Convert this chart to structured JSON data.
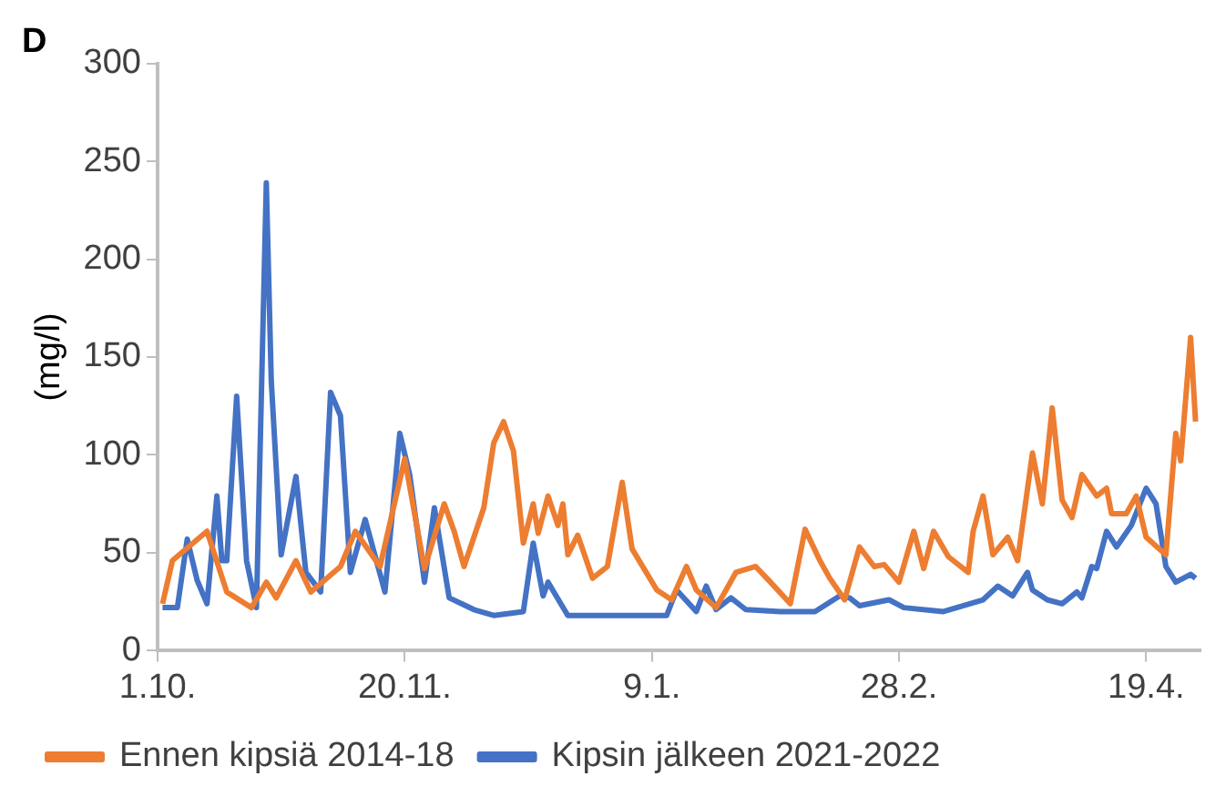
{
  "chart_data": {
    "type": "line",
    "title": "D",
    "ylabel": "(mg/l)",
    "xlim": [
      "2021-10-01",
      "2022-04-30"
    ],
    "xticks": [
      {
        "value": "2021-10-01",
        "label": "1.10."
      },
      {
        "value": "2021-11-20",
        "label": "20.11."
      },
      {
        "value": "2022-01-09",
        "label": "9.1."
      },
      {
        "value": "2022-02-28",
        "label": "28.2."
      },
      {
        "value": "2022-04-19",
        "label": "19.4."
      }
    ],
    "ylim": [
      0,
      300
    ],
    "yticks": [
      0,
      50,
      100,
      150,
      200,
      250,
      300
    ],
    "grid": false,
    "legend": "bottom",
    "marker": "none",
    "line_style": "solid",
    "series": [
      {
        "name": "Ennen kipsiä 2014-18",
        "color": "#ed7d31",
        "x": [
          "2021-10-02",
          "2021-10-04",
          "2021-10-11",
          "2021-10-15",
          "2021-10-20",
          "2021-10-23",
          "2021-10-25",
          "2021-10-29",
          "2021-11-01",
          "2021-11-07",
          "2021-11-10",
          "2021-11-15",
          "2021-11-20",
          "2021-11-24",
          "2021-11-28",
          "2021-11-30",
          "2021-12-02",
          "2021-12-06",
          "2021-12-08",
          "2021-12-10",
          "2021-12-12",
          "2021-12-14",
          "2021-12-16",
          "2021-12-17",
          "2021-12-19",
          "2021-12-21",
          "2021-12-22",
          "2021-12-23",
          "2021-12-25",
          "2021-12-28",
          "2021-12-31",
          "2022-01-03",
          "2022-01-05",
          "2022-01-10",
          "2022-01-13",
          "2022-01-16",
          "2022-01-18",
          "2022-01-22",
          "2022-01-26",
          "2022-01-30",
          "2022-02-02",
          "2022-02-06",
          "2022-02-09",
          "2022-02-12",
          "2022-02-14",
          "2022-02-17",
          "2022-02-20",
          "2022-02-23",
          "2022-02-25",
          "2022-02-28",
          "2022-03-03",
          "2022-03-05",
          "2022-03-07",
          "2022-03-10",
          "2022-03-14",
          "2022-03-15",
          "2022-03-17",
          "2022-03-19",
          "2022-03-22",
          "2022-03-24",
          "2022-03-27",
          "2022-03-29",
          "2022-03-31",
          "2022-04-02",
          "2022-04-04",
          "2022-04-06",
          "2022-04-09",
          "2022-04-11",
          "2022-04-12",
          "2022-04-15",
          "2022-04-17",
          "2022-04-19",
          "2022-04-23",
          "2022-04-25",
          "2022-04-26",
          "2022-04-28",
          "2022-04-29"
        ],
        "values": [
          24,
          46,
          61,
          30,
          22,
          35,
          27,
          46,
          30,
          43,
          61,
          43,
          98,
          42,
          75,
          61,
          43,
          73,
          106,
          117,
          102,
          55,
          75,
          60,
          79,
          64,
          75,
          49,
          59,
          37,
          43,
          86,
          52,
          31,
          26,
          43,
          31,
          22,
          40,
          43,
          35,
          24,
          62,
          46,
          37,
          26,
          53,
          43,
          44,
          35,
          61,
          42,
          61,
          48,
          40,
          61,
          79,
          49,
          58,
          46,
          101,
          75,
          124,
          77,
          68,
          90,
          79,
          83,
          70,
          70,
          79,
          58,
          49,
          111,
          97,
          160,
          117
        ]
      },
      {
        "name": "Kipsin jälkeen 2021-2022",
        "color": "#4472c4",
        "x": [
          "2021-10-02",
          "2021-10-05",
          "2021-10-07",
          "2021-10-09",
          "2021-10-11",
          "2021-10-13",
          "2021-10-14",
          "2021-10-15",
          "2021-10-17",
          "2021-10-19",
          "2021-10-21",
          "2021-10-23",
          "2021-10-24",
          "2021-10-26",
          "2021-10-29",
          "2021-10-31",
          "2021-11-03",
          "2021-11-05",
          "2021-11-07",
          "2021-11-09",
          "2021-11-12",
          "2021-11-16",
          "2021-11-19",
          "2021-11-21",
          "2021-11-24",
          "2021-11-26",
          "2021-11-29",
          "2021-12-04",
          "2021-12-08",
          "2021-12-14",
          "2021-12-16",
          "2021-12-18",
          "2021-12-19",
          "2021-12-23",
          "2021-12-29",
          "2022-01-12",
          "2022-01-14",
          "2022-01-18",
          "2022-01-20",
          "2022-01-22",
          "2022-01-25",
          "2022-01-28",
          "2022-02-04",
          "2022-02-11",
          "2022-02-16",
          "2022-02-18",
          "2022-02-20",
          "2022-02-26",
          "2022-03-01",
          "2022-03-09",
          "2022-03-17",
          "2022-03-20",
          "2022-03-23",
          "2022-03-26",
          "2022-03-27",
          "2022-03-30",
          "2022-04-02",
          "2022-04-05",
          "2022-04-06",
          "2022-04-08",
          "2022-04-09",
          "2022-04-11",
          "2022-04-13",
          "2022-04-16",
          "2022-04-19",
          "2022-04-21",
          "2022-04-23",
          "2022-04-25",
          "2022-04-28",
          "2022-04-29"
        ],
        "values": [
          22,
          22,
          57,
          36,
          24,
          79,
          46,
          46,
          130,
          46,
          22,
          239,
          138,
          49,
          89,
          40,
          30,
          132,
          120,
          40,
          67,
          30,
          111,
          90,
          35,
          73,
          27,
          21,
          18,
          20,
          55,
          28,
          35,
          18,
          18,
          18,
          31,
          20,
          33,
          21,
          27,
          21,
          20,
          20,
          28,
          27,
          23,
          26,
          22,
          20,
          26,
          33,
          28,
          40,
          31,
          26,
          24,
          30,
          27,
          43,
          42,
          61,
          53,
          64,
          83,
          75,
          43,
          35,
          39,
          37
        ]
      }
    ]
  }
}
